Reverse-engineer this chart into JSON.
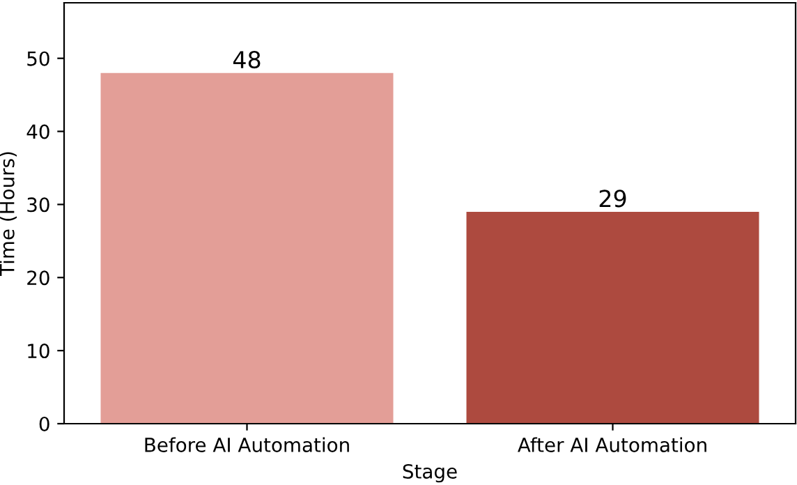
{
  "chart_data": {
    "type": "bar",
    "xlabel": "Stage",
    "ylabel": "Time (Hours)",
    "categories": [
      "Before AI Automation",
      "After AI Automation"
    ],
    "values": [
      48,
      29
    ],
    "colors": [
      "#e39e97",
      "#ad4a3f"
    ],
    "ylim": [
      0,
      57.6
    ],
    "yticks": [
      0,
      10,
      20,
      30,
      40,
      50
    ],
    "data_labels": true,
    "grid": false,
    "legend": false
  }
}
